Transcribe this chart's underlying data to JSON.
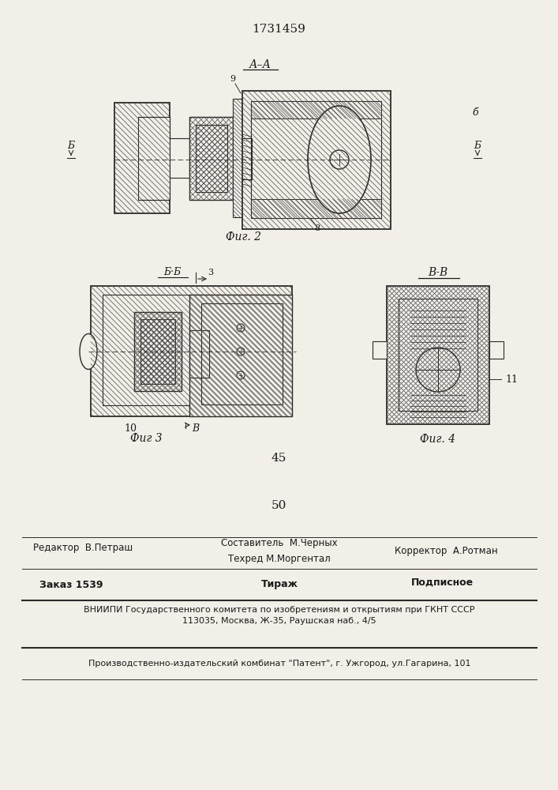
{
  "patent_number": "1731459",
  "fig2_label": "А–А",
  "fig2_caption": "Фиг. 2",
  "fig3_label": "ББ",
  "fig3_caption": "Фиг 3",
  "fig4_label": "В-В",
  "fig4_caption": "Фиг. 4",
  "number_45": "45",
  "number_50": "50",
  "editor_label": "Редактор  В.Петраш",
  "compiler_line1": "Составитель  М.Черных",
  "techred_line2": "Техред М.Моргентал",
  "corrector_label": "Корректор  А.Ротман",
  "order_label": "Заказ 1539",
  "tirazh_label": "Тираж",
  "podpisnoe_label": "Подписное",
  "vniiipi_line": "ВНИИПИ Государственного комитета по изобретениям и открытиям при ГКНТ СССР",
  "address_line": "113035, Москва, Ж-35, Раушская наб., 4/5",
  "publisher_line": "Производственно-издательский комбинат \"Патент\", г. Ужгород, ул.Гагарина, 101",
  "bg_color": "#f2efe9",
  "line_color": "#2a2a2a",
  "text_color": "#1a1a1a",
  "hatch_color": "#4a4a4a"
}
